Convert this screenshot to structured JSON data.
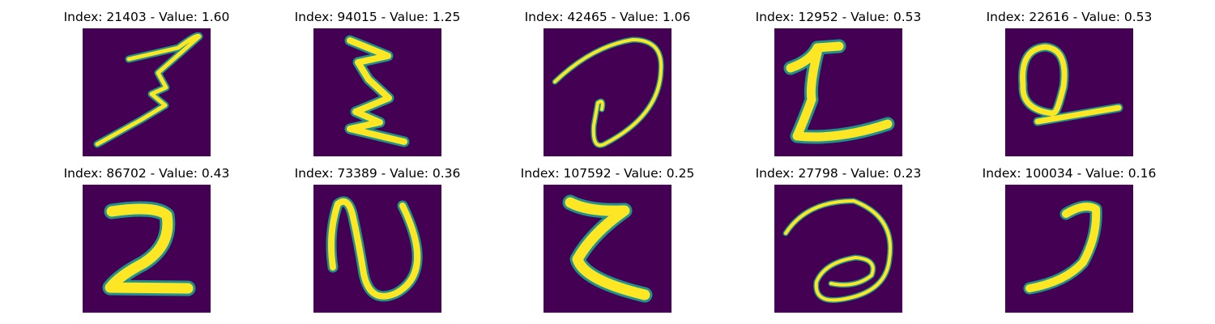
{
  "colors": {
    "background": "#440154",
    "stroke_outer": "#21918c",
    "stroke_mid": "#5ec962",
    "stroke_core": "#fde725"
  },
  "panels": [
    {
      "title": "Index: 21403 - Value: 1.60"
    },
    {
      "title": "Index: 94015 - Value: 1.25"
    },
    {
      "title": "Index: 42465 - Value: 1.06"
    },
    {
      "title": "Index: 12952 - Value: 0.53"
    },
    {
      "title": "Index: 22616 - Value: 0.53"
    },
    {
      "title": "Index: 86702 - Value: 0.43"
    },
    {
      "title": "Index: 73389 - Value: 0.36"
    },
    {
      "title": "Index: 107592 - Value: 0.25"
    },
    {
      "title": "Index: 27798 - Value: 0.23"
    },
    {
      "title": "Index: 100034 - Value: 0.16"
    }
  ]
}
